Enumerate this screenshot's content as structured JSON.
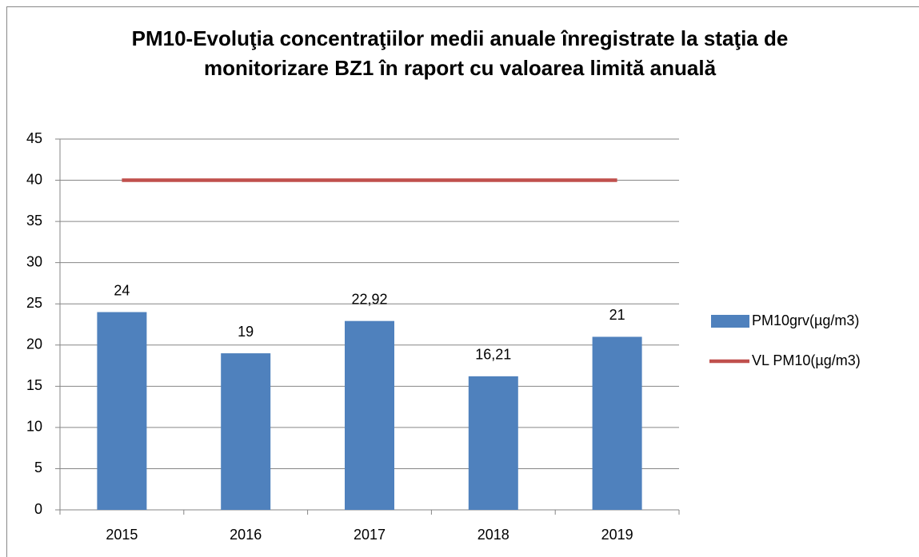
{
  "chart_data": {
    "type": "bar",
    "title": "PM10-Evoluţia concentraţiilor medii anuale înregistrate la staţia de monitorizare BZ1 în raport cu valoarea limită anuală",
    "categories": [
      "2015",
      "2016",
      "2017",
      "2018",
      "2019"
    ],
    "series": [
      {
        "name": "PM10grv(µg/m3)",
        "type": "bar",
        "color": "#4f81bd",
        "values": [
          24,
          19,
          22.92,
          16.21,
          21
        ],
        "value_labels": [
          "24",
          "19",
          "22,92",
          "16,21",
          "21"
        ]
      },
      {
        "name": "VL PM10(µg/m3)",
        "type": "line",
        "color": "#c0504d",
        "values": [
          40,
          40,
          40,
          40,
          40
        ]
      }
    ],
    "ylim": [
      0,
      45
    ],
    "yticks": [
      0,
      5,
      10,
      15,
      20,
      25,
      30,
      35,
      40,
      45
    ],
    "grid": true,
    "legend": "right"
  }
}
